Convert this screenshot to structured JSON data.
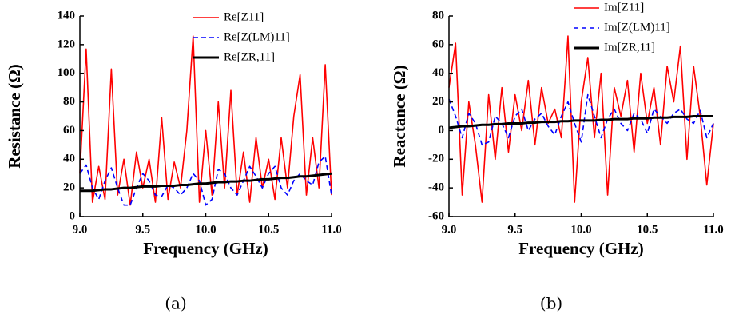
{
  "chart_data": [
    {
      "type": "line",
      "caption": "(a)",
      "xlabel": "Frequency (GHz)",
      "ylabel": "Resistance (Ω)",
      "xlim": [
        9,
        11
      ],
      "ylim": [
        0,
        140
      ],
      "xticks": [
        {
          "value": 9,
          "label": "9.0"
        },
        {
          "value": 9.5,
          "label": "9.5"
        },
        {
          "value": 10,
          "label": "10.0"
        },
        {
          "value": 10.5,
          "label": "10.5"
        },
        {
          "value": 11,
          "label": "11.0"
        }
      ],
      "yticks": [
        0,
        20,
        40,
        60,
        80,
        100,
        120,
        140
      ],
      "x": [
        9,
        9.05,
        9.1,
        9.15,
        9.2,
        9.25,
        9.3,
        9.35,
        9.4,
        9.45,
        9.5,
        9.55,
        9.6,
        9.65,
        9.7,
        9.75,
        9.8,
        9.85,
        9.9,
        9.95,
        10,
        10.05,
        10.1,
        10.15,
        10.2,
        10.25,
        10.3,
        10.35,
        10.4,
        10.45,
        10.5,
        10.55,
        10.6,
        10.65,
        10.7,
        10.75,
        10.8,
        10.85,
        10.9,
        10.95,
        11
      ],
      "series": [
        {
          "name": "Re[Z11]",
          "color": "#ff0000",
          "dash": false,
          "values": [
            30,
            117,
            10,
            35,
            12,
            103,
            15,
            40,
            8,
            45,
            20,
            40,
            10,
            69,
            12,
            38,
            20,
            60,
            126,
            10,
            60,
            15,
            80,
            20,
            88,
            15,
            45,
            10,
            55,
            20,
            40,
            12,
            55,
            20,
            70,
            99,
            15,
            55,
            20,
            106,
            15
          ]
        },
        {
          "name": "Re[Z(LM)11]",
          "color": "#0000ff",
          "dash": true,
          "values": [
            30,
            36,
            20,
            12,
            25,
            34,
            20,
            8,
            8,
            20,
            30,
            25,
            15,
            14,
            22,
            20,
            15,
            20,
            30,
            25,
            8,
            12,
            33,
            30,
            20,
            15,
            25,
            35,
            28,
            20,
            30,
            35,
            20,
            15,
            25,
            30,
            25,
            22,
            38,
            42,
            15
          ]
        },
        {
          "name": "Re[ZR,11]",
          "color": "#000000",
          "dash": false,
          "values": [
            18,
            18,
            18,
            18.5,
            19,
            19,
            19.5,
            20,
            20,
            20.5,
            21,
            21,
            21,
            21.5,
            21.5,
            21.5,
            22,
            22,
            22.5,
            23,
            23,
            23.5,
            24,
            24,
            24.5,
            24.5,
            25,
            25,
            25.5,
            26,
            26,
            26.5,
            27,
            27,
            27.5,
            28,
            28,
            28.5,
            29,
            29.5,
            30
          ]
        }
      ]
    },
    {
      "type": "line",
      "caption": "(b)",
      "xlabel": "Frequency (GHz)",
      "ylabel": "Reactance (Ω)",
      "xlim": [
        9,
        11
      ],
      "ylim": [
        -60,
        80
      ],
      "xticks": [
        {
          "value": 9,
          "label": "9.0"
        },
        {
          "value": 9.5,
          "label": "9.5"
        },
        {
          "value": 10,
          "label": "10.0"
        },
        {
          "value": 10.5,
          "label": "10.5"
        },
        {
          "value": 11,
          "label": "11.0"
        }
      ],
      "yticks": [
        -60,
        -40,
        -20,
        0,
        20,
        40,
        60,
        80
      ],
      "x": [
        9,
        9.05,
        9.1,
        9.15,
        9.2,
        9.25,
        9.3,
        9.35,
        9.4,
        9.45,
        9.5,
        9.55,
        9.6,
        9.65,
        9.7,
        9.75,
        9.8,
        9.85,
        9.9,
        9.95,
        10,
        10.05,
        10.1,
        10.15,
        10.2,
        10.25,
        10.3,
        10.35,
        10.4,
        10.45,
        10.5,
        10.55,
        10.6,
        10.65,
        10.7,
        10.75,
        10.8,
        10.85,
        10.9,
        10.95,
        11
      ],
      "series": [
        {
          "name": "Im[Z11]",
          "color": "#ff0000",
          "dash": false,
          "values": [
            30,
            61,
            -45,
            20,
            -10,
            -50,
            25,
            -20,
            30,
            -15,
            25,
            0,
            35,
            -10,
            30,
            5,
            15,
            -5,
            66,
            -50,
            20,
            51,
            -5,
            40,
            -45,
            30,
            10,
            35,
            -15,
            40,
            5,
            30,
            -10,
            45,
            20,
            59,
            -20,
            45,
            10,
            -38,
            5
          ]
        },
        {
          "name": "Im[Z(LM)11]",
          "color": "#0000ff",
          "dash": true,
          "values": [
            22,
            10,
            -5,
            12,
            5,
            -10,
            -8,
            10,
            5,
            -5,
            10,
            15,
            0,
            8,
            12,
            3,
            -3,
            10,
            20,
            5,
            -8,
            25,
            10,
            -5,
            8,
            15,
            5,
            0,
            12,
            8,
            -2,
            15,
            10,
            5,
            12,
            15,
            8,
            5,
            14,
            -5,
            5
          ]
        },
        {
          "name": "Im[ZR,11]",
          "color": "#000000",
          "dash": false,
          "values": [
            2,
            2.5,
            3,
            3,
            3.5,
            4,
            4,
            4.5,
            4.5,
            5,
            5,
            5,
            5.5,
            5.5,
            6,
            6,
            6,
            6.5,
            6.5,
            7,
            7,
            7,
            7,
            7.5,
            7.5,
            8,
            8,
            8,
            8.5,
            8.5,
            8.5,
            9,
            9,
            9,
            9.5,
            9.5,
            9.5,
            10,
            10,
            10,
            10
          ]
        }
      ]
    }
  ]
}
